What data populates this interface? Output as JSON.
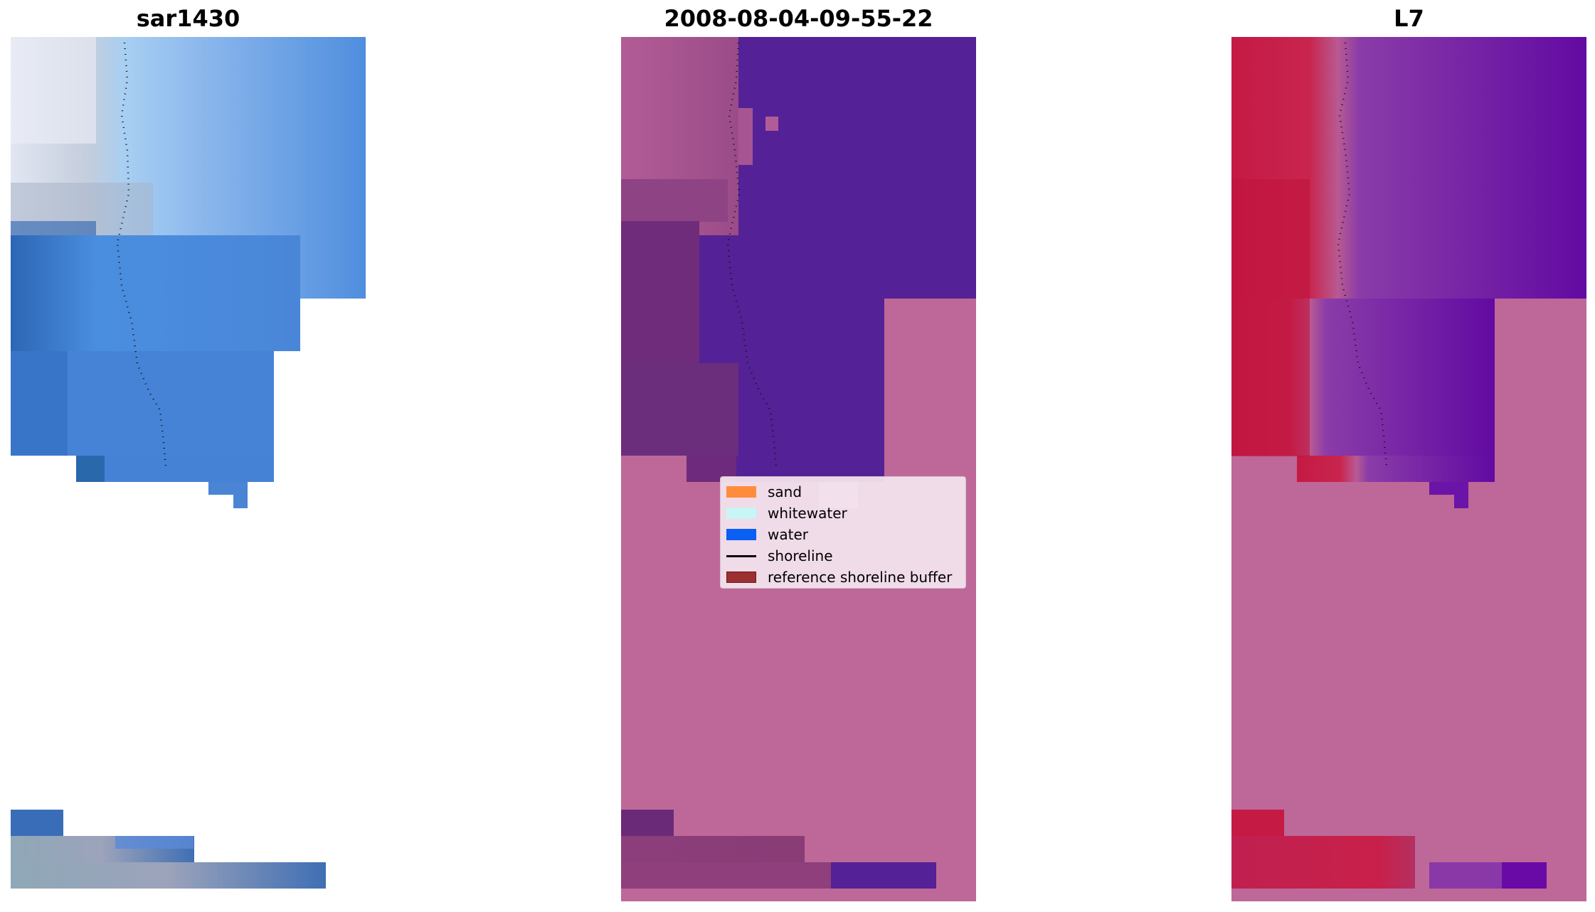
{
  "panels": [
    {
      "title": "sar1430",
      "kind": "rgb"
    },
    {
      "title": "2008-08-04-09-55-22",
      "kind": "classified"
    },
    {
      "title": "L7",
      "kind": "mndwi"
    }
  ],
  "legend": {
    "items": [
      {
        "label": "sand",
        "color": "#ff8c3c",
        "kind": "patch"
      },
      {
        "label": "whitewater",
        "color": "#c8f5f5",
        "kind": "patch"
      },
      {
        "label": "water",
        "color": "#0a5ff5",
        "kind": "patch"
      },
      {
        "label": "shoreline",
        "color": "#000000",
        "kind": "line"
      },
      {
        "label": "reference shoreline buffer",
        "color": "#9b3030",
        "kind": "patch"
      }
    ]
  },
  "colors": {
    "nodata_overlay": "#bd6898",
    "classified_water": "#552196",
    "mndwi_land": "#c0133c",
    "mndwi_water": "#6a0aa6"
  }
}
